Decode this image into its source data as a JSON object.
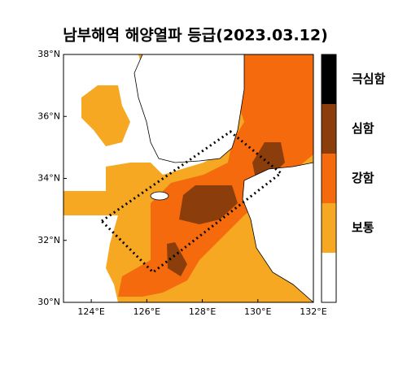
{
  "title": "남부해역 해양열파 등급(2023.03.12)",
  "lon_range": [
    123,
    132
  ],
  "lat_range": [
    30,
    38
  ],
  "lon_ticks": [
    {
      "value": 124,
      "label": "124°E"
    },
    {
      "value": 126,
      "label": "126°E"
    },
    {
      "value": 128,
      "label": "128°E"
    },
    {
      "value": 130,
      "label": "130°E"
    },
    {
      "value": 132,
      "label": "132°E"
    }
  ],
  "lat_ticks": [
    {
      "value": 30,
      "label": "30°N"
    },
    {
      "value": 32,
      "label": "32°N"
    },
    {
      "value": 34,
      "label": "34°N"
    },
    {
      "value": 36,
      "label": "36°N"
    },
    {
      "value": 38,
      "label": "38°N"
    }
  ],
  "legend": [
    {
      "label": "극심함",
      "color": "#000000"
    },
    {
      "label": "심함",
      "color": "#8b3e0c"
    },
    {
      "label": "강함",
      "color": "#f46a0c"
    },
    {
      "label": "보통",
      "color": "#f7a823"
    }
  ]
}
